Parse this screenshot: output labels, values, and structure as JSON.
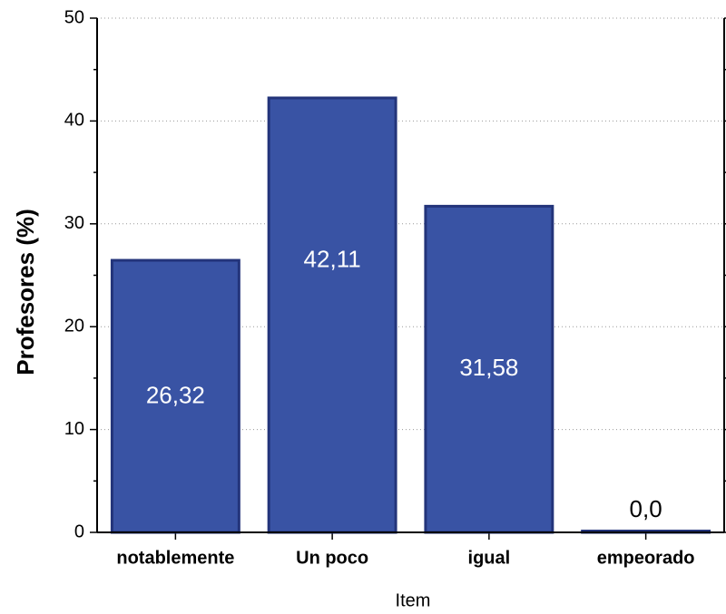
{
  "chart_data": {
    "type": "bar",
    "categories": [
      "notablemente",
      "Un poco",
      "igual",
      "empeorado"
    ],
    "values": [
      26.32,
      42.11,
      31.58,
      0.0
    ],
    "value_labels": [
      "26,32",
      "42,11",
      "31,58",
      "0,0"
    ],
    "color": "#3953a4",
    "xlabel": "Item",
    "ylabel": "Profesores (%)",
    "ylim": [
      0,
      50
    ],
    "yticks": [
      0,
      10,
      20,
      30,
      40,
      50
    ],
    "grid": true
  }
}
